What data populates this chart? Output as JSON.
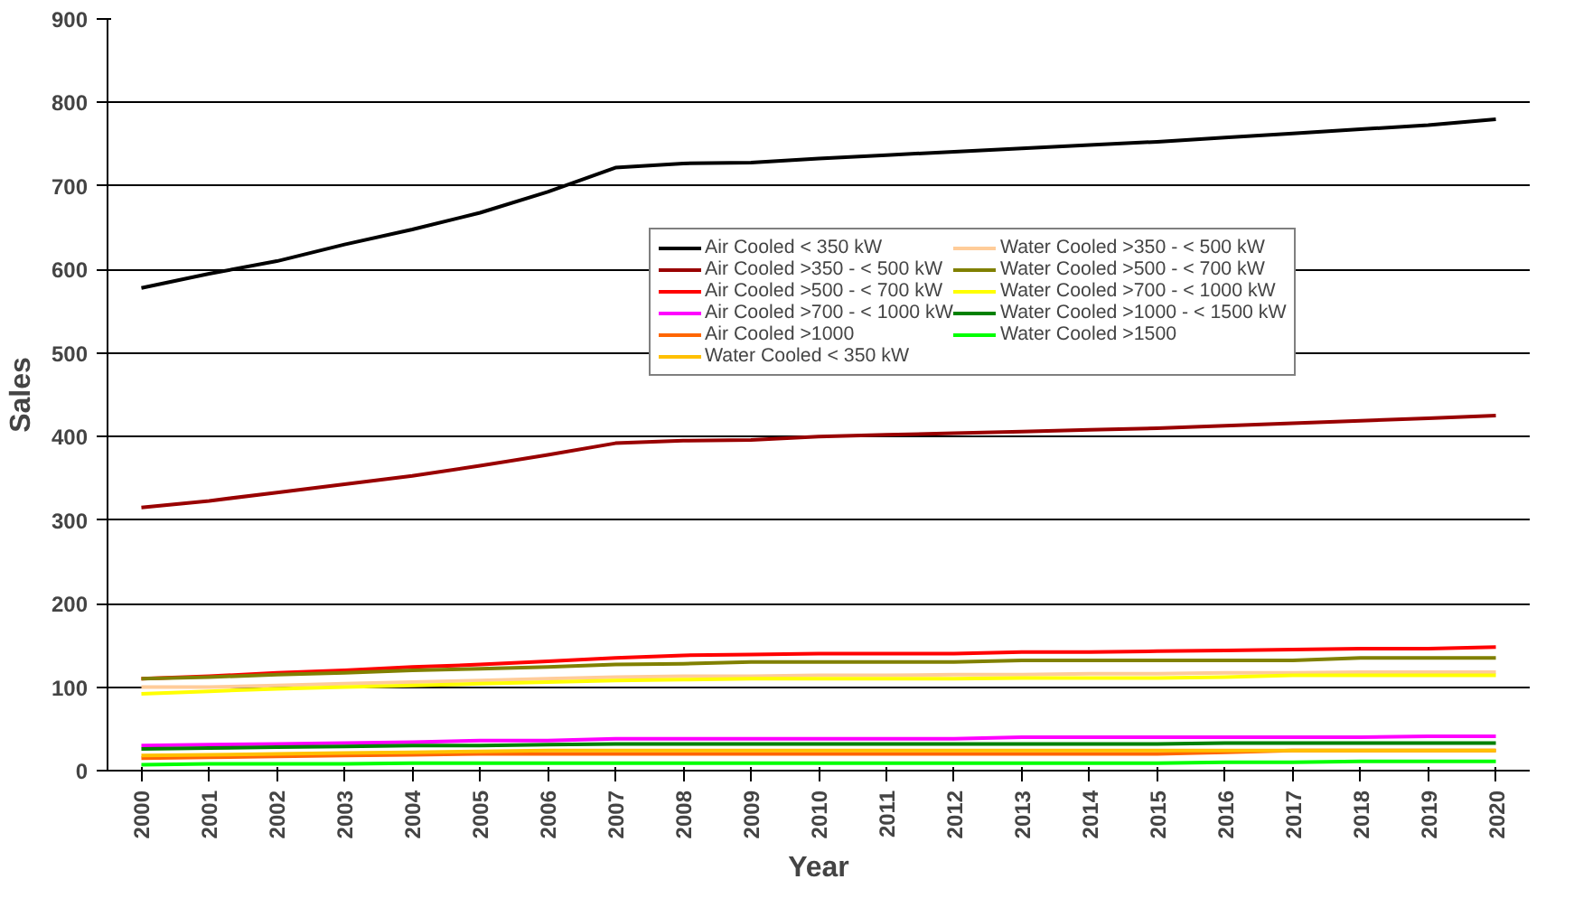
{
  "chart_data": {
    "type": "line",
    "xlabel": "Year",
    "ylabel": "Sales",
    "x": [
      2000,
      2001,
      2002,
      2003,
      2004,
      2005,
      2006,
      2007,
      2008,
      2009,
      2010,
      2011,
      2012,
      2013,
      2014,
      2015,
      2016,
      2017,
      2018,
      2019,
      2020
    ],
    "xlim": [
      1999.5,
      2020.5
    ],
    "xticks": [
      2000,
      2001,
      2002,
      2003,
      2004,
      2005,
      2006,
      2007,
      2008,
      2009,
      2010,
      2011,
      2012,
      2013,
      2014,
      2015,
      2016,
      2017,
      2018,
      2019,
      2020
    ],
    "ylim": [
      0,
      900
    ],
    "yticks": [
      0,
      100,
      200,
      300,
      400,
      500,
      600,
      700,
      800,
      900
    ],
    "grid": "y",
    "legend": "top right",
    "marker": "none",
    "line_style": "solid",
    "series": [
      {
        "name": "Air Cooled < 350 kW",
        "color": "#000000",
        "values": [
          578,
          595,
          610,
          630,
          648,
          668,
          693,
          722,
          727,
          728,
          733,
          737,
          741,
          745,
          749,
          753,
          758,
          763,
          768,
          773,
          780
        ]
      },
      {
        "name": "Air Cooled >350 - < 500 kW",
        "color": "#990000",
        "values": [
          315,
          323,
          333,
          343,
          353,
          365,
          378,
          392,
          395,
          396,
          400,
          402,
          404,
          406,
          408,
          410,
          413,
          416,
          419,
          422,
          425
        ]
      },
      {
        "name": "Air Cooled >500 - < 700 kW",
        "color": "#ff0000",
        "values": [
          110,
          113,
          117,
          120,
          124,
          127,
          131,
          135,
          138,
          139,
          140,
          140,
          140,
          142,
          142,
          143,
          144,
          145,
          146,
          146,
          148
        ]
      },
      {
        "name": "Air Cooled >700 - < 1000 kW",
        "color": "#ff00ff",
        "values": [
          30,
          31,
          32,
          33,
          34,
          36,
          36,
          38,
          38,
          38,
          38,
          38,
          38,
          40,
          40,
          40,
          40,
          40,
          40,
          41,
          41
        ]
      },
      {
        "name": "Air Cooled >1000",
        "color": "#ff6600",
        "values": [
          15,
          16,
          17,
          18,
          19,
          20,
          20,
          20,
          20,
          20,
          20,
          20,
          20,
          20,
          20,
          20,
          22,
          24,
          24,
          24,
          24
        ]
      },
      {
        "name": "Water Cooled < 350 kW",
        "color": "#ffc000",
        "values": [
          18,
          19,
          20,
          21,
          22,
          23,
          24,
          24,
          24,
          24,
          24,
          24,
          24,
          24,
          24,
          24,
          24,
          24,
          24,
          24,
          24
        ]
      },
      {
        "name": "Water Cooled >350 - < 500 kW",
        "color": "#ffcc99",
        "values": [
          100,
          100,
          102,
          104,
          106,
          108,
          110,
          112,
          113,
          113,
          114,
          114,
          115,
          115,
          116,
          116,
          117,
          117,
          118,
          118,
          118
        ]
      },
      {
        "name": "Water Cooled >500 - < 700 kW",
        "color": "#808000",
        "values": [
          110,
          112,
          115,
          117,
          120,
          122,
          124,
          127,
          128,
          130,
          130,
          130,
          130,
          132,
          132,
          132,
          132,
          132,
          135,
          135,
          135
        ]
      },
      {
        "name": "Water Cooled >700 - < 1000 kW",
        "color": "#ffff00",
        "values": [
          92,
          95,
          98,
          100,
          102,
          104,
          106,
          108,
          109,
          110,
          110,
          110,
          110,
          111,
          111,
          111,
          112,
          114,
          114,
          114,
          114
        ]
      },
      {
        "name": "Water Cooled >1000 - < 1500 kW",
        "color": "#008000",
        "values": [
          26,
          27,
          28,
          29,
          30,
          30,
          31,
          32,
          32,
          32,
          32,
          32,
          32,
          32,
          32,
          32,
          33,
          33,
          33,
          33,
          33
        ]
      },
      {
        "name": "Water Cooled >1500",
        "color": "#00ff00",
        "values": [
          7,
          8,
          8,
          8,
          9,
          9,
          9,
          9,
          9,
          9,
          9,
          9,
          9,
          9,
          9,
          9,
          10,
          10,
          11,
          11,
          11
        ]
      }
    ]
  }
}
